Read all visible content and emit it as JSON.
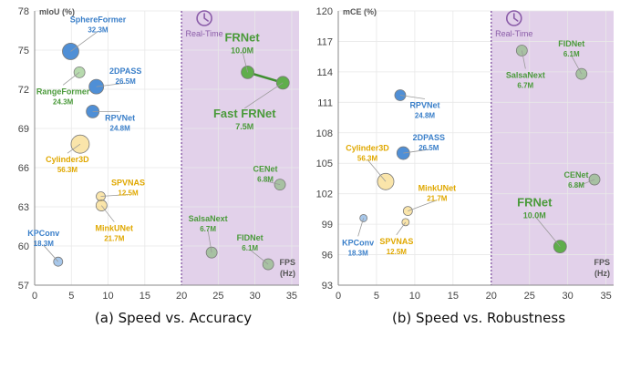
{
  "figure": {
    "caption_a": "(a) Speed vs. Accuracy",
    "caption_b": "(b) Speed vs. Robustness",
    "realtime_label": "Real-Time",
    "xunit_fps": "FPS",
    "xunit_hz": "(Hz)"
  },
  "colors": {
    "green": "#5fae4b",
    "blue": "#4f8fd6",
    "yellow": "#f5c542",
    "realtime_shade": "#e2d1ea",
    "realtime_line": "#8a5ca8",
    "grid": "#e8e8e8"
  },
  "chart_data": [
    {
      "type": "scatter",
      "ylabel": "mIoU (%)",
      "xlim": [
        0,
        36
      ],
      "ylim": [
        57,
        78
      ],
      "xticks": [
        0,
        5,
        10,
        15,
        20,
        25,
        30,
        35
      ],
      "yticks": [
        57,
        60,
        63,
        66,
        69,
        72,
        75,
        78
      ],
      "realtime_threshold": 20,
      "points": [
        {
          "name": "SphereFormer",
          "params": "32.3M",
          "x": 4.9,
          "y": 74.9,
          "color": "blue",
          "size": 9
        },
        {
          "name": "RangeFormer",
          "params": "24.3M",
          "x": 6.1,
          "y": 73.3,
          "color": "green",
          "size": 6
        },
        {
          "name": "2DPASS",
          "params": "26.5M",
          "x": 8.4,
          "y": 72.2,
          "color": "blue",
          "size": 8
        },
        {
          "name": "RPVNet",
          "params": "24.8M",
          "x": 7.9,
          "y": 70.3,
          "color": "blue",
          "size": 7
        },
        {
          "name": "Cylinder3D",
          "params": "56.3M",
          "x": 6.2,
          "y": 67.8,
          "color": "yellow",
          "size": 10
        },
        {
          "name": "SPVNAS",
          "params": "12.5M",
          "x": 9.0,
          "y": 63.8,
          "color": "yellow",
          "size": 5
        },
        {
          "name": "MinkUNet",
          "params": "21.7M",
          "x": 9.1,
          "y": 63.1,
          "color": "yellow",
          "size": 6
        },
        {
          "name": "KPConv",
          "params": "18.3M",
          "x": 3.2,
          "y": 58.8,
          "color": "blue",
          "size": 5
        },
        {
          "name": "FRNet",
          "params": "10.0M",
          "x": 29.0,
          "y": 73.3,
          "color": "green",
          "size": 7
        },
        {
          "name": "Fast FRNet",
          "params": "7.5M",
          "x": 33.8,
          "y": 72.5,
          "color": "green",
          "size": 7
        },
        {
          "name": "CENet",
          "params": "6.8M",
          "x": 33.4,
          "y": 64.7,
          "color": "green",
          "size": 6
        },
        {
          "name": "SalsaNext",
          "params": "6.7M",
          "x": 24.1,
          "y": 59.5,
          "color": "green",
          "size": 6
        },
        {
          "name": "FIDNet",
          "params": "6.1M",
          "x": 31.8,
          "y": 58.6,
          "color": "green",
          "size": 6
        }
      ]
    },
    {
      "type": "scatter",
      "ylabel": "mCE (%)",
      "xlim": [
        0,
        36
      ],
      "ylim": [
        93,
        120
      ],
      "xticks": [
        0,
        5,
        10,
        15,
        20,
        25,
        30,
        35
      ],
      "yticks": [
        93,
        96,
        99,
        102,
        105,
        108,
        111,
        114,
        117,
        120
      ],
      "realtime_threshold": 20,
      "points": [
        {
          "name": "FIDNet",
          "params": "6.1M",
          "x": 31.8,
          "y": 113.8,
          "color": "green",
          "size": 6
        },
        {
          "name": "SalsaNext",
          "params": "6.7M",
          "x": 24.0,
          "y": 116.1,
          "color": "green",
          "size": 6
        },
        {
          "name": "RPVNet",
          "params": "24.8M",
          "x": 8.1,
          "y": 111.7,
          "color": "blue",
          "size": 6
        },
        {
          "name": "2DPASS",
          "params": "26.5M",
          "x": 8.5,
          "y": 106.0,
          "color": "blue",
          "size": 7
        },
        {
          "name": "Cylinder3D",
          "params": "56.3M",
          "x": 6.2,
          "y": 103.2,
          "color": "yellow",
          "size": 9
        },
        {
          "name": "CENet",
          "params": "6.8M",
          "x": 33.5,
          "y": 103.4,
          "color": "green",
          "size": 6
        },
        {
          "name": "MinkUNet",
          "params": "21.7M",
          "x": 9.1,
          "y": 100.3,
          "color": "yellow",
          "size": 5
        },
        {
          "name": "SPVNAS",
          "params": "12.5M",
          "x": 8.8,
          "y": 99.2,
          "color": "yellow",
          "size": 4
        },
        {
          "name": "KPConv",
          "params": "18.3M",
          "x": 3.3,
          "y": 99.6,
          "color": "blue",
          "size": 4
        },
        {
          "name": "FRNet",
          "params": "10.0M",
          "x": 29.0,
          "y": 96.8,
          "color": "green",
          "size": 7
        }
      ]
    }
  ]
}
